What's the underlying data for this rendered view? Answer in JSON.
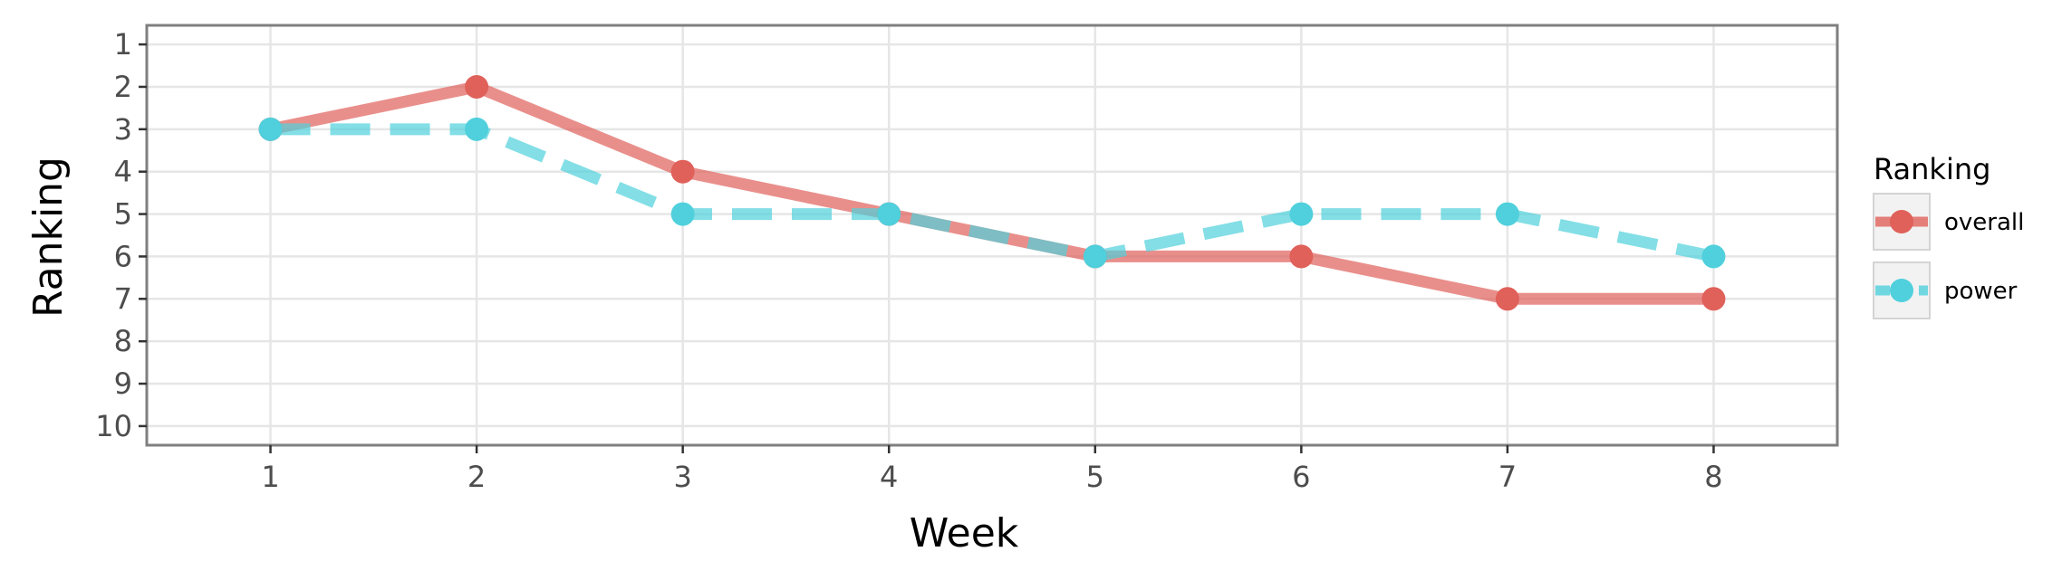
{
  "chart_data": {
    "type": "line",
    "xlabel": "Week",
    "ylabel": "Ranking",
    "x": [
      1,
      2,
      3,
      4,
      5,
      6,
      7,
      8
    ],
    "xlim": [
      0.4,
      8.6
    ],
    "ylim": [
      10.45,
      0.55
    ],
    "y_reversed": true,
    "x_ticks": [
      "1",
      "2",
      "3",
      "4",
      "5",
      "6",
      "7",
      "8"
    ],
    "y_ticks": [
      "1",
      "2",
      "3",
      "4",
      "5",
      "6",
      "7",
      "8",
      "9",
      "10"
    ],
    "grid": true,
    "legend_position": "right",
    "legend_title": "Ranking",
    "series": [
      {
        "name": "overall",
        "values": [
          3,
          2,
          4,
          5,
          6,
          6,
          7,
          7
        ],
        "color": "#e0605a",
        "line_style": "solid"
      },
      {
        "name": "power",
        "values": [
          3,
          3,
          5,
          5,
          6,
          5,
          5,
          6
        ],
        "color": "#4fd0dc",
        "line_style": "dashed"
      }
    ]
  }
}
